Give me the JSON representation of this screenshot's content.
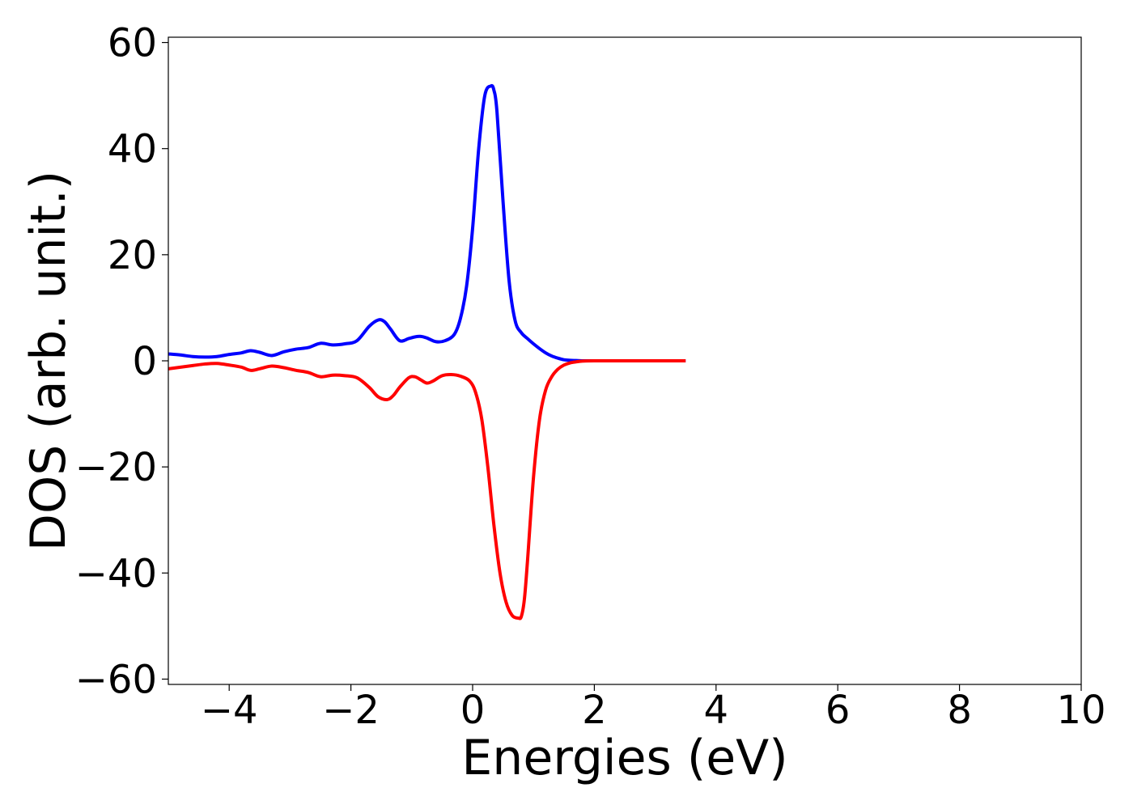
{
  "chart_data": {
    "type": "line",
    "xlabel": "Energies (eV)",
    "ylabel": "DOS (arb. unit.)",
    "xlim": [
      -5,
      10
    ],
    "ylim": [
      -61,
      61
    ],
    "xticks": [
      -4,
      -2,
      0,
      2,
      4,
      6,
      8,
      10
    ],
    "xtick_labels": [
      "−4",
      "−2",
      "0",
      "2",
      "4",
      "6",
      "8",
      "10"
    ],
    "yticks": [
      -60,
      -40,
      -20,
      0,
      20,
      40,
      60
    ],
    "ytick_labels": [
      "−60",
      "−40",
      "−20",
      "0",
      "20",
      "40",
      "60"
    ],
    "grid": false,
    "series": [
      {
        "color": "#0000ff",
        "x": [
          -5.0,
          -4.8,
          -4.6,
          -4.4,
          -4.2,
          -4.0,
          -3.8,
          -3.65,
          -3.5,
          -3.3,
          -3.1,
          -2.9,
          -2.7,
          -2.5,
          -2.3,
          -2.1,
          -1.9,
          -1.7,
          -1.55,
          -1.45,
          -1.35,
          -1.2,
          -1.05,
          -0.95,
          -0.85,
          -0.75,
          -0.6,
          -0.45,
          -0.3,
          -0.2,
          -0.1,
          0.0,
          0.1,
          0.2,
          0.3,
          0.35,
          0.4,
          0.5,
          0.6,
          0.7,
          0.8,
          0.9,
          1.0,
          1.1,
          1.2,
          1.3,
          1.4,
          1.5,
          1.6,
          1.7,
          1.8,
          2.0,
          2.5,
          3.0,
          3.5
        ],
        "y": [
          1.3,
          1.1,
          0.8,
          0.7,
          0.8,
          1.2,
          1.5,
          1.9,
          1.6,
          1.0,
          1.7,
          2.2,
          2.5,
          3.3,
          3.0,
          3.2,
          3.8,
          6.5,
          7.7,
          7.4,
          6.0,
          3.8,
          4.2,
          4.5,
          4.6,
          4.3,
          3.6,
          3.8,
          5.0,
          8.0,
          14.0,
          25.0,
          40.0,
          50.0,
          51.8,
          51.0,
          47.0,
          30.0,
          15.0,
          7.5,
          5.3,
          4.2,
          3.2,
          2.3,
          1.5,
          0.9,
          0.5,
          0.2,
          0.1,
          0.05,
          0.0,
          0.0,
          0.0,
          0.0,
          0.0
        ]
      },
      {
        "color": "#ff0000",
        "x": [
          -5.0,
          -4.8,
          -4.6,
          -4.4,
          -4.2,
          -4.0,
          -3.8,
          -3.65,
          -3.5,
          -3.3,
          -3.1,
          -2.9,
          -2.7,
          -2.5,
          -2.3,
          -2.1,
          -1.9,
          -1.7,
          -1.55,
          -1.4,
          -1.3,
          -1.2,
          -1.05,
          -0.95,
          -0.85,
          -0.75,
          -0.65,
          -0.5,
          -0.35,
          -0.2,
          -0.05,
          0.05,
          0.15,
          0.25,
          0.35,
          0.45,
          0.55,
          0.65,
          0.75,
          0.8,
          0.85,
          0.9,
          1.0,
          1.1,
          1.2,
          1.3,
          1.4,
          1.5,
          1.6,
          1.7,
          1.8,
          2.0,
          2.5,
          3.0,
          3.5
        ],
        "y": [
          -1.5,
          -1.2,
          -0.9,
          -0.6,
          -0.5,
          -0.8,
          -1.2,
          -1.8,
          -1.5,
          -1.0,
          -1.3,
          -1.8,
          -2.2,
          -3.0,
          -2.7,
          -2.8,
          -3.2,
          -5.0,
          -6.8,
          -7.3,
          -6.5,
          -5.0,
          -3.2,
          -3.0,
          -3.6,
          -4.2,
          -3.8,
          -2.8,
          -2.6,
          -2.9,
          -3.8,
          -6.0,
          -11.0,
          -20.0,
          -31.0,
          -40.0,
          -45.5,
          -48.0,
          -48.5,
          -48.2,
          -45.0,
          -38.0,
          -22.0,
          -11.0,
          -5.5,
          -3.0,
          -1.6,
          -0.8,
          -0.4,
          -0.2,
          -0.05,
          0.0,
          0.0,
          0.0,
          0.0
        ]
      }
    ]
  }
}
